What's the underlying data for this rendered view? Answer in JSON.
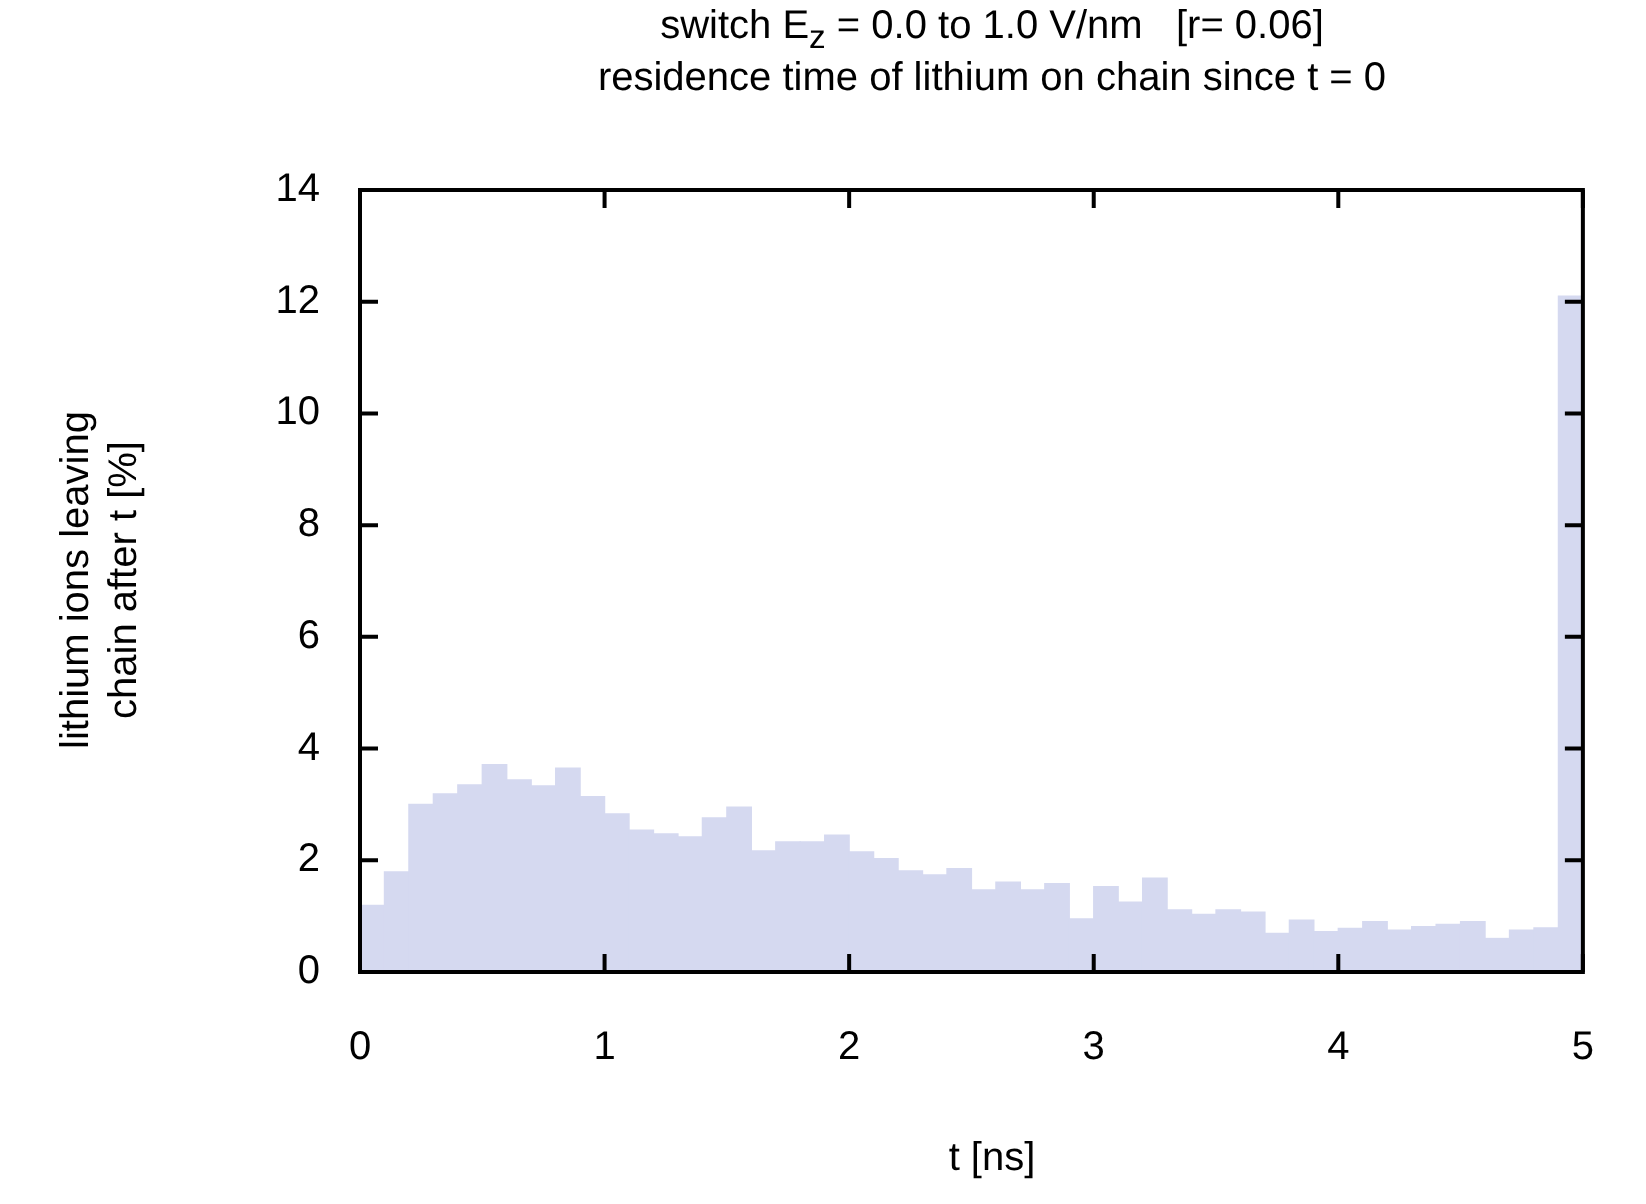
{
  "chart_data": {
    "type": "histogram",
    "title": "switch E$_{z}$ = 0.0 to 1.0 V/nm   [r= 0.06]",
    "subtitle": "residence time of lithium on chain since t = 0",
    "xlabel": "t [ns]",
    "ylabel": "lithium ions leaving\nchain after t [%]",
    "bins": [
      0,
      0.1,
      0.2,
      0.3,
      0.4,
      0.5,
      0.6,
      0.7,
      0.8,
      0.9,
      1.0,
      1.1,
      1.2,
      1.3,
      1.4,
      1.5,
      1.6,
      1.7,
      1.8,
      1.9,
      2.0,
      2.1,
      2.2,
      2.3,
      2.4,
      2.5,
      2.6,
      2.7,
      2.8,
      2.9,
      3.0,
      3.1,
      3.2,
      3.3,
      3.4,
      3.5,
      3.6,
      3.7,
      3.8,
      3.9,
      4.0,
      4.1,
      4.2,
      4.3,
      4.4,
      4.5,
      4.6,
      4.7,
      4.8,
      4.9,
      5.0
    ],
    "values": [
      1.19,
      1.79,
      3.0,
      3.19,
      3.35,
      3.71,
      3.44,
      3.33,
      3.65,
      3.14,
      2.83,
      2.54,
      2.47,
      2.42,
      2.76,
      2.95,
      2.17,
      2.33,
      2.33,
      2.45,
      2.15,
      2.03,
      1.81,
      1.74,
      1.85,
      1.47,
      1.61,
      1.47,
      1.58,
      0.95,
      1.53,
      1.25,
      1.68,
      1.11,
      1.03,
      1.11,
      1.07,
      0.69,
      0.93,
      0.72,
      0.78,
      0.9,
      0.75,
      0.81,
      0.85,
      0.9,
      0.6,
      0.75,
      0.79,
      12.1
    ],
    "color": "#d5d9f0",
    "xlim": [
      0,
      5
    ],
    "xticks": [
      0,
      1,
      2,
      3,
      4,
      5
    ],
    "ylim": [
      0,
      14
    ],
    "yticks": [
      0,
      2,
      4,
      6,
      8,
      10,
      12,
      14
    ],
    "grid": false,
    "legend": false
  }
}
